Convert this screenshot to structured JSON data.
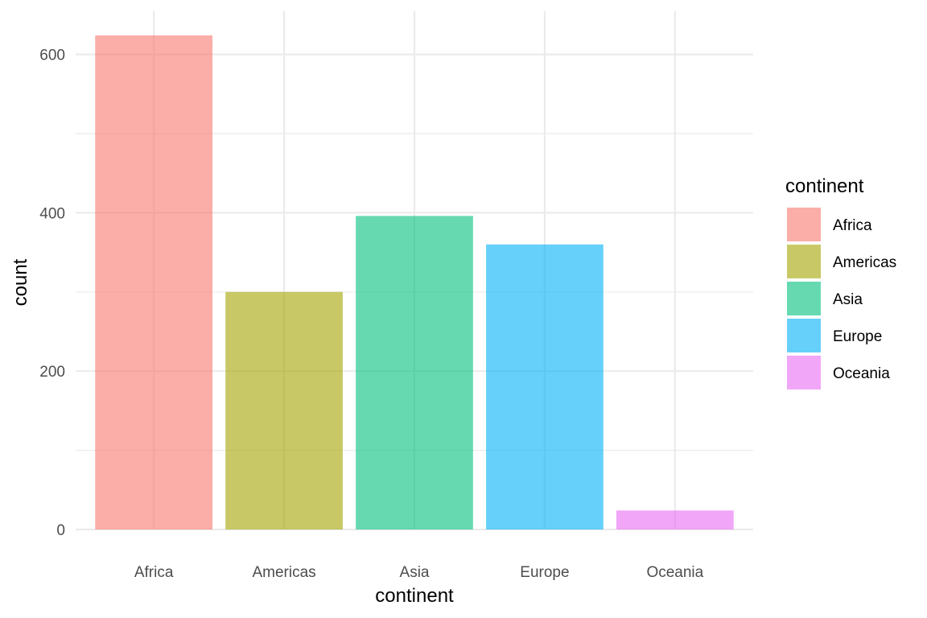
{
  "chart_data": {
    "type": "bar",
    "categories": [
      "Africa",
      "Americas",
      "Asia",
      "Europe",
      "Oceania"
    ],
    "values": [
      624,
      300,
      396,
      360,
      24
    ],
    "colors": [
      "#F8766D",
      "#A3A500",
      "#00BF7D",
      "#00B0F6",
      "#E76BF3"
    ],
    "bar_opacity": 0.6,
    "xlabel": "continent",
    "ylabel": "count",
    "ylim": [
      0,
      655
    ],
    "yticks": [
      0,
      200,
      400,
      600
    ],
    "yminor": [
      100,
      300,
      500
    ],
    "grid": true,
    "legend": {
      "title": "continent",
      "position": "right",
      "entries": [
        "Africa",
        "Americas",
        "Asia",
        "Europe",
        "Oceania"
      ]
    }
  }
}
